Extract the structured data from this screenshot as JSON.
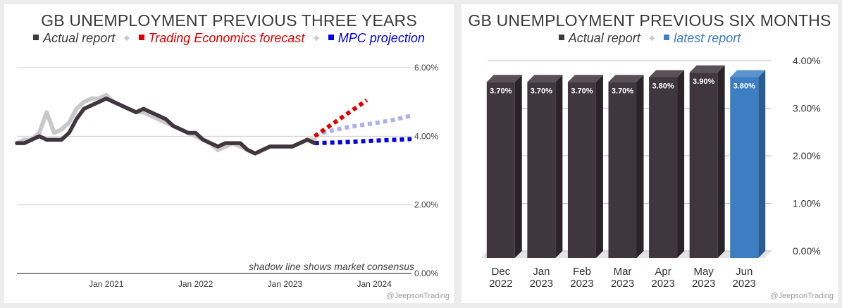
{
  "left": {
    "legend": [
      {
        "label": "Actual report",
        "color": "#3f373d"
      },
      {
        "label": "Trading Economics forecast",
        "color": "#e00000"
      },
      {
        "label": "MPC projection",
        "color": "#0000e0"
      }
    ],
    "note": "shadow line shows market consensus",
    "credit": "@JeepsonTrading"
  },
  "right": {
    "legend": [
      {
        "label": "Actual report",
        "color": "#3f373d"
      },
      {
        "label": "latest report",
        "color": "#3d7dc2"
      }
    ],
    "credit": "@JeepsonTrading"
  },
  "chart_data": [
    {
      "type": "line",
      "title": "GB UNEMPLOYMENT PREVIOUS THREE YEARS",
      "x_ticks": [
        "Jan 2021",
        "Jan 2022",
        "Jan 2023",
        "Jan 2024"
      ],
      "y_ticks": [
        "6.00%",
        "4.00%",
        "2.00%",
        "0.00%"
      ],
      "ylim": [
        0,
        6
      ],
      "xlim": [
        "2020-01",
        "2024-06"
      ],
      "series": [
        {
          "name": "Actual report",
          "color": "#3f373d",
          "x": [
            "2020-01",
            "2020-02",
            "2020-03",
            "2020-04",
            "2020-05",
            "2020-06",
            "2020-07",
            "2020-08",
            "2020-09",
            "2020-10",
            "2020-11",
            "2020-12",
            "2021-01",
            "2021-02",
            "2021-03",
            "2021-04",
            "2021-05",
            "2021-06",
            "2021-07",
            "2021-08",
            "2021-09",
            "2021-10",
            "2021-11",
            "2021-12",
            "2022-01",
            "2022-02",
            "2022-03",
            "2022-04",
            "2022-05",
            "2022-06",
            "2022-07",
            "2022-08",
            "2022-09",
            "2022-10",
            "2022-11",
            "2022-12",
            "2023-01",
            "2023-02",
            "2023-03",
            "2023-04",
            "2023-05"
          ],
          "values": [
            3.8,
            3.8,
            3.9,
            4.0,
            3.9,
            3.9,
            3.9,
            4.1,
            4.5,
            4.8,
            4.9,
            5.0,
            5.1,
            5.0,
            4.9,
            4.8,
            4.7,
            4.8,
            4.7,
            4.6,
            4.5,
            4.3,
            4.2,
            4.1,
            4.1,
            3.9,
            3.8,
            3.7,
            3.8,
            3.8,
            3.8,
            3.6,
            3.5,
            3.6,
            3.7,
            3.7,
            3.7,
            3.7,
            3.8,
            3.9,
            3.8
          ]
        },
        {
          "name": "market consensus",
          "color": "#c8c8c8",
          "x": [
            "2020-01",
            "2020-02",
            "2020-03",
            "2020-04",
            "2020-05",
            "2020-06",
            "2020-07",
            "2020-08",
            "2020-09",
            "2020-10",
            "2020-11",
            "2020-12",
            "2021-01",
            "2021-02",
            "2021-03",
            "2021-04",
            "2021-05",
            "2021-06",
            "2021-07",
            "2021-08",
            "2021-09",
            "2021-10",
            "2021-11",
            "2021-12",
            "2022-01",
            "2022-02",
            "2022-03",
            "2022-04",
            "2022-05",
            "2022-06",
            "2022-07",
            "2022-08",
            "2022-09",
            "2022-10",
            "2022-11",
            "2022-12",
            "2023-01",
            "2023-02",
            "2023-03",
            "2023-04",
            "2023-05"
          ],
          "values": [
            3.8,
            3.9,
            3.9,
            4.1,
            4.7,
            4.1,
            4.2,
            4.4,
            4.8,
            5.0,
            5.1,
            5.1,
            5.2,
            5.0,
            4.9,
            4.8,
            4.7,
            4.7,
            4.6,
            4.5,
            4.4,
            4.3,
            4.2,
            4.1,
            4.0,
            3.9,
            3.8,
            3.6,
            3.7,
            3.8,
            3.7,
            3.6,
            3.5,
            3.6,
            3.7,
            3.7,
            3.7,
            3.7,
            3.8,
            3.9,
            3.9
          ]
        },
        {
          "name": "Trading Economics forecast",
          "color": "#e00000",
          "dotted": true,
          "x": [
            "2023-05",
            "2023-06",
            "2023-07",
            "2023-08",
            "2023-09",
            "2023-10",
            "2023-11",
            "2023-12"
          ],
          "values": [
            4.0,
            4.15,
            4.3,
            4.45,
            4.6,
            4.75,
            4.9,
            5.05
          ]
        },
        {
          "name": "Trading Economics forecast (extended)",
          "color": "#aeaef2",
          "dotted": true,
          "x": [
            "2023-06",
            "2023-09",
            "2023-12",
            "2024-03",
            "2024-06"
          ],
          "values": [
            4.1,
            4.25,
            4.35,
            4.45,
            4.6
          ]
        },
        {
          "name": "MPC projection",
          "color": "#0000e0",
          "dotted": true,
          "x": [
            "2023-05",
            "2023-08",
            "2023-11",
            "2024-02",
            "2024-06"
          ],
          "values": [
            3.8,
            3.82,
            3.85,
            3.88,
            3.92
          ]
        }
      ]
    },
    {
      "type": "bar",
      "title": "GB UNEMPLOYMENT PREVIOUS SIX MONTHS",
      "categories": [
        [
          "Dec",
          "2022"
        ],
        [
          "Jan",
          "2023"
        ],
        [
          "Feb",
          "2023"
        ],
        [
          "Mar",
          "2023"
        ],
        [
          "Apr",
          "2023"
        ],
        [
          "May",
          "2023"
        ],
        [
          "Jun",
          "2023"
        ]
      ],
      "values": [
        3.7,
        3.7,
        3.7,
        3.7,
        3.8,
        3.9,
        3.8
      ],
      "labels": [
        "3.70%",
        "3.70%",
        "3.70%",
        "3.70%",
        "3.80%",
        "3.90%",
        "3.80%"
      ],
      "colors": [
        "#3f373d",
        "#3f373d",
        "#3f373d",
        "#3f373d",
        "#3f373d",
        "#3f373d",
        "#3d7dc2"
      ],
      "y_ticks": [
        "4.00%",
        "3.00%",
        "2.00%",
        "1.00%",
        "0.00%"
      ],
      "ylim": [
        0,
        4
      ]
    }
  ]
}
